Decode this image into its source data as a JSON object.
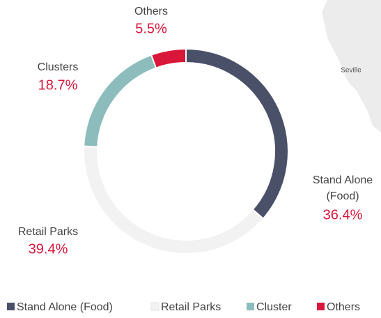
{
  "chart_data": {
    "type": "donut",
    "series": [
      {
        "name": "Stand Alone (Food)",
        "color": "#4a5068",
        "values": [
          36.4
        ],
        "value_labels": [
          "36.4%"
        ],
        "label": [
          "Stand Alone",
          "(Food)"
        ]
      },
      {
        "name": "Retail Parks",
        "color": "#f2f2f2",
        "values": [
          39.4
        ],
        "value_labels": [
          "39.4%"
        ],
        "label": [
          "Retail Parks"
        ]
      },
      {
        "name": "Cluster",
        "color": "#8cbdbc",
        "values": [
          18.7
        ],
        "value_labels": [
          "18.7%"
        ],
        "label": [
          "Clusters"
        ]
      },
      {
        "name": "Others",
        "color": "#d8173b",
        "values": [
          5.5
        ],
        "value_labels": [
          "5.5%"
        ],
        "label": [
          "Others"
        ]
      }
    ]
  },
  "map_label": "Seville"
}
